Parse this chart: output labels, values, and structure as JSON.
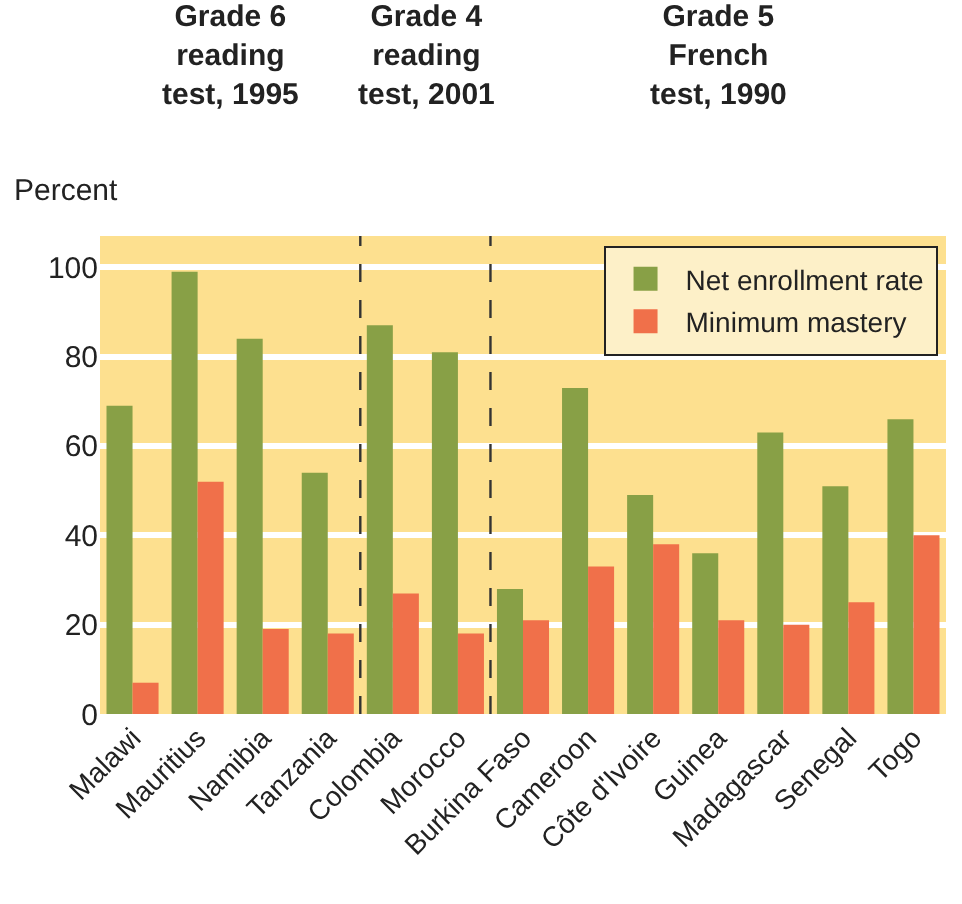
{
  "chart_data": {
    "type": "bar",
    "ylabel": "Percent",
    "categories": [
      "Malawi",
      "Mauritius",
      "Namibia",
      "Tanzania",
      "Colombia",
      "Morocco",
      "Burkina Faso",
      "Cameroon",
      "Côte d'Ivoire",
      "Guinea",
      "Madagascar",
      "Senegal",
      "Togo"
    ],
    "series": [
      {
        "name": "Net enrollment rate",
        "color": "#88a046",
        "values": [
          69,
          99,
          84,
          54,
          87,
          81,
          28,
          73,
          49,
          36,
          63,
          51,
          66
        ]
      },
      {
        "name": "Minimum mastery",
        "color": "#f0704a",
        "values": [
          7,
          52,
          19,
          18,
          27,
          18,
          21,
          33,
          38,
          21,
          20,
          25,
          40
        ]
      }
    ],
    "annotations": [
      "Grade 6\nreading\ntest, 1995",
      "Grade 4\nreading\ntest, 2001",
      "Grade 5\nFrench\ntest, 1990"
    ],
    "ylim": [
      0,
      107
    ],
    "yticks": [
      0,
      20,
      40,
      60,
      80,
      100
    ],
    "grid": "y",
    "legend": "top right"
  }
}
